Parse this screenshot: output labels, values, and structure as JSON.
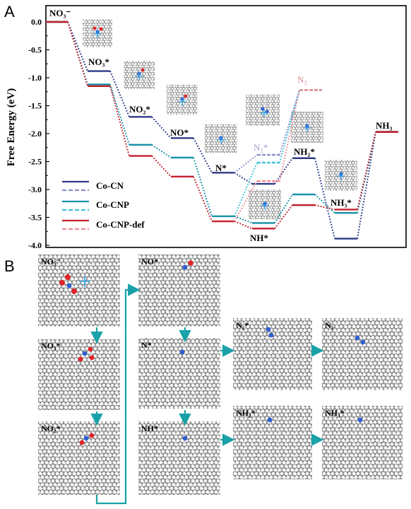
{
  "panel_a_letter": "A",
  "panel_b_letter": "B",
  "chart_data": {
    "type": "line",
    "title": "",
    "xlabel": "",
    "ylabel": "Free Energy (eV)",
    "ylim": [
      -4.0,
      0.2
    ],
    "yticks": [
      0.0,
      -0.5,
      -1.0,
      -1.5,
      -2.0,
      -2.5,
      -3.0,
      -3.5,
      -4.0
    ],
    "ytick_labels": [
      "0.0",
      "-0.5",
      "-1.0",
      "-1.5",
      "-2.0",
      "-2.5",
      "-3.0",
      "-3.5",
      "-4.0"
    ],
    "legend_position": "lower-left",
    "legend": [
      "Co-CN",
      "Co-CNP",
      "Co-CNP-def"
    ],
    "colors": {
      "Co-CN": "#2e3a87",
      "Co-CN-alt": "#8a90c8",
      "Co-CNP": "#1590a8",
      "Co-CNP-alt": "#3cc4d8",
      "Co-CNP-def": "#c4202c",
      "Co-CNP-def-alt": "#ee8c94"
    },
    "state_labels": [
      "NO₃⁻",
      "NO₃*",
      "NO₂*",
      "NO*",
      "N*",
      "N₂*",
      "N₂",
      "NH*",
      "NH₂*",
      "NH₃*",
      "NH₃"
    ],
    "series": [
      {
        "name": "Co-CN",
        "style": "solid",
        "x": [
          0,
          1,
          2,
          3,
          4,
          5,
          6,
          7,
          8
        ],
        "y": [
          0.0,
          -0.88,
          -1.7,
          -2.08,
          -2.7,
          -2.9,
          -2.44,
          -3.88,
          -1.97
        ]
      },
      {
        "name": "Co-CNP",
        "style": "solid",
        "x": [
          0,
          1,
          2,
          3,
          4,
          5,
          6,
          7,
          8
        ],
        "y": [
          0.0,
          -1.12,
          -2.2,
          -2.43,
          -3.48,
          -3.6,
          -3.09,
          -3.42,
          -1.97
        ]
      },
      {
        "name": "Co-CNP-def",
        "style": "solid",
        "x": [
          0,
          1,
          2,
          3,
          4,
          5,
          6,
          7,
          8
        ],
        "y": [
          0.0,
          -1.15,
          -2.4,
          -2.77,
          -3.57,
          -3.7,
          -3.28,
          -3.36,
          -1.97
        ]
      },
      {
        "name": "Co-CN",
        "style": "dashed",
        "branch": "N₂",
        "x": [
          4,
          5,
          6
        ],
        "y": [
          -2.7,
          -2.38,
          -1.22
        ]
      },
      {
        "name": "Co-CNP",
        "style": "dashed",
        "branch": "N₂",
        "x": [
          4,
          5,
          6
        ],
        "y": [
          -3.48,
          -2.52,
          -1.22
        ]
      },
      {
        "name": "Co-CNP-def",
        "style": "dashed",
        "branch": "N₂",
        "x": [
          4,
          5,
          6
        ],
        "y": [
          -3.57,
          -2.85,
          -1.22
        ]
      }
    ]
  },
  "scheme": {
    "slab_labels": [
      "NO₃⁻",
      "NO₃*",
      "NO₂*",
      "NO*",
      "N*",
      "NH*",
      "N₂*",
      "N₂",
      "NH₂*",
      "NH₃*"
    ]
  }
}
